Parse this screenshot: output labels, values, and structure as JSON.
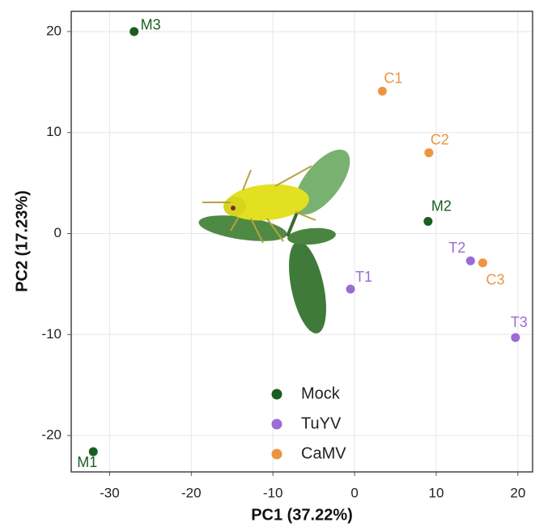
{
  "chart_data": {
    "type": "scatter",
    "x_label": "PC1 (37.22%)",
    "y_label": "PC2 (17.23%)",
    "xlim": [
      -34.7,
      21.8
    ],
    "ylim": [
      -23.6,
      22
    ],
    "xticks": [
      -30,
      -20,
      -10,
      0,
      10,
      20
    ],
    "yticks": [
      -20,
      -10,
      0,
      10,
      20
    ],
    "grid": true,
    "legend": "bottom",
    "series": [
      {
        "name": "Mock",
        "color": "#1b5e20",
        "x": [
          -32,
          -27,
          9
        ],
        "values": [
          -21.6,
          20,
          1.2
        ],
        "labels": [
          "M1",
          "M3",
          "M2"
        ]
      },
      {
        "name": "TuYV",
        "color": "#9b6bd6",
        "x": [
          -0.5,
          14.2,
          19.7
        ],
        "values": [
          -5.5,
          -2.7,
          -10.3
        ],
        "labels": [
          "T1",
          "T2",
          "T3"
        ]
      },
      {
        "name": "CaMV",
        "color": "#ec9540",
        "x": [
          3.4,
          9.1,
          15.7
        ],
        "values": [
          14.1,
          8,
          -2.9
        ],
        "labels": [
          "C1",
          "C2",
          "C3"
        ]
      }
    ]
  }
}
